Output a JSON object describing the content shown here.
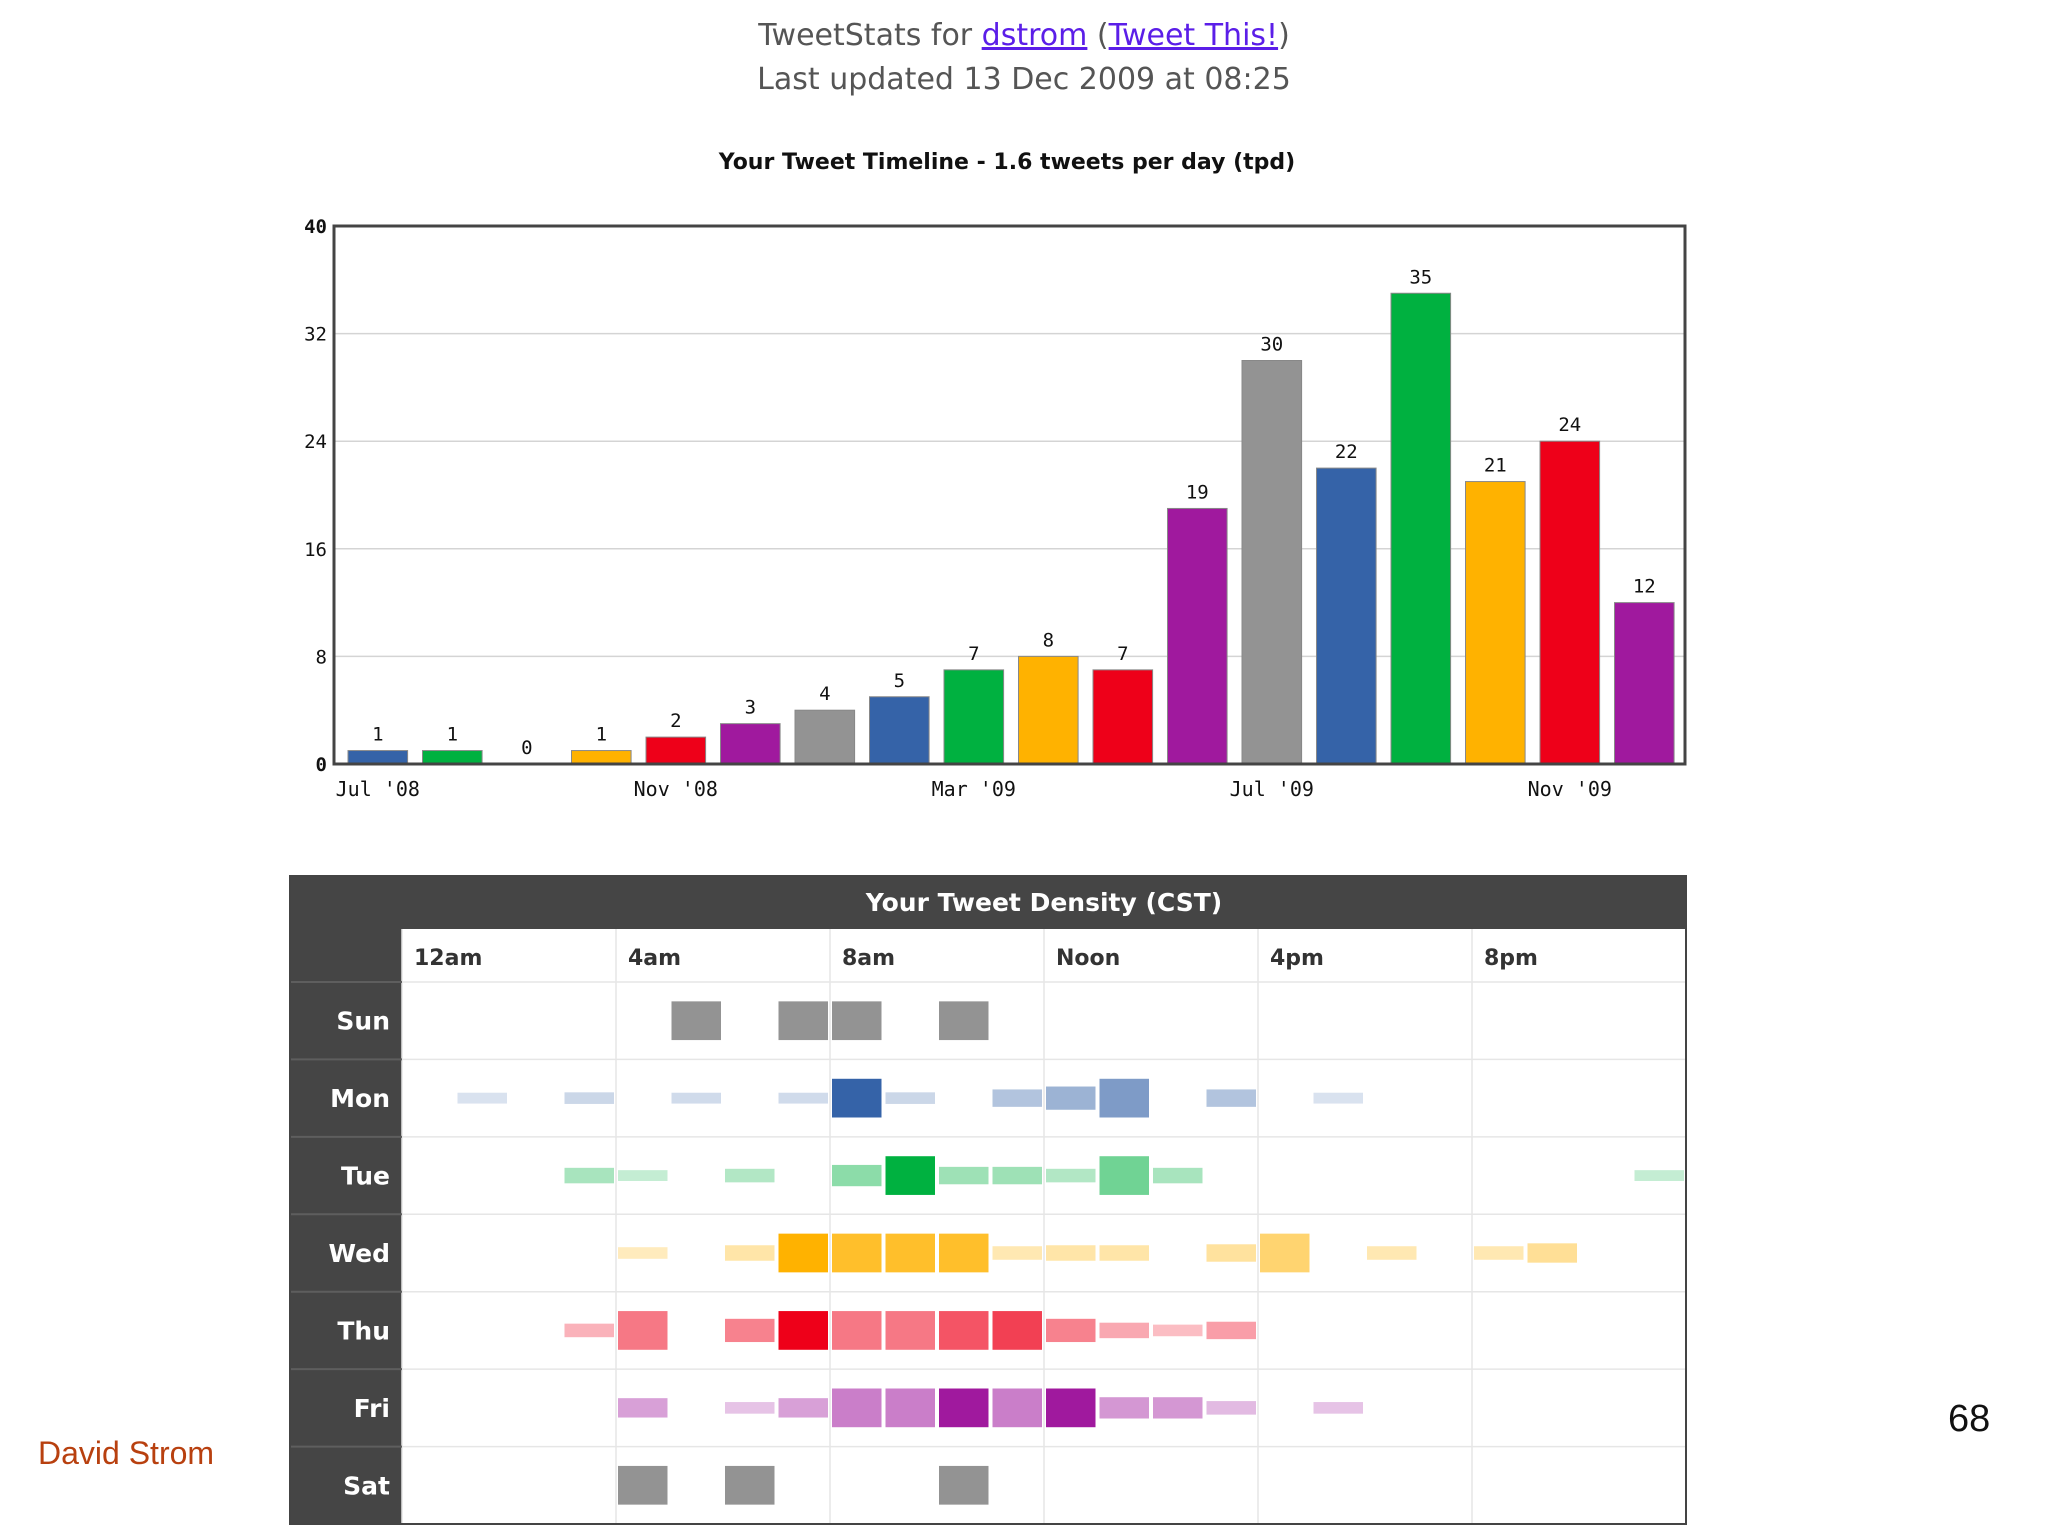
{
  "header": {
    "prefix": "TweetStats for ",
    "user_link": "dstrom",
    "paren_open": " (",
    "tweet_link": "Tweet This!",
    "paren_close": ")",
    "updated": "Last updated 13 Dec 2009 at 08:25"
  },
  "colors": {
    "blue": "#3563a8",
    "green": "#00b140",
    "orange": "#ffb200",
    "red": "#ee0019",
    "purple": "#a0199e",
    "gray": "#939393"
  },
  "chart_data": [
    {
      "type": "bar",
      "title": "Your Tweet Timeline - 1.6 tweets per day (tpd)",
      "xlabel": "",
      "ylabel": "",
      "ylim": [
        0,
        40
      ],
      "yticks": [
        "0",
        "8",
        "16",
        "24",
        "32",
        "40"
      ],
      "x_tick_labels": [
        {
          "label": "Jul '08",
          "index": 0
        },
        {
          "label": "Nov '08",
          "index": 4
        },
        {
          "label": "Mar '09",
          "index": 8
        },
        {
          "label": "Jul '09",
          "index": 12
        },
        {
          "label": "Nov '09",
          "index": 16
        }
      ],
      "values": [
        1,
        1,
        0,
        1,
        2,
        3,
        4,
        5,
        7,
        8,
        7,
        19,
        30,
        22,
        35,
        21,
        24,
        12
      ],
      "bar_colors": [
        "blue",
        "green",
        "orange",
        "orange",
        "red",
        "purple",
        "gray",
        "blue",
        "green",
        "orange",
        "red",
        "purple",
        "gray",
        "blue",
        "green",
        "orange",
        "red",
        "purple"
      ]
    },
    {
      "type": "heatmap",
      "title": "Your Tweet Density (CST)",
      "columns": [
        "12am",
        "4am",
        "8am",
        "Noon",
        "4pm",
        "8pm"
      ],
      "rows": [
        {
          "day": "Sun",
          "color": "gray",
          "hours": [
            0,
            0,
            0,
            0,
            0,
            1,
            0,
            1,
            1,
            0,
            1,
            0,
            0,
            0,
            0,
            0,
            0,
            0,
            0,
            0,
            0,
            0,
            0,
            0
          ]
        },
        {
          "day": "Mon",
          "color": "blue",
          "hours": [
            0,
            0.05,
            0,
            0.15,
            0,
            0.1,
            0,
            0.1,
            1,
            0.15,
            0,
            0.3,
            0.45,
            0.65,
            0,
            0.3,
            0,
            0.05,
            0,
            0,
            0,
            0,
            0,
            0
          ]
        },
        {
          "day": "Tue",
          "color": "green",
          "hours": [
            0,
            0,
            0,
            0.25,
            0.1,
            0,
            0.2,
            0,
            0.4,
            1,
            0.3,
            0.3,
            0.2,
            0.55,
            0.25,
            0,
            0,
            0,
            0,
            0,
            0,
            0,
            0,
            0.1
          ]
        },
        {
          "day": "Wed",
          "color": "orange",
          "hours": [
            0,
            0,
            0,
            0,
            0.15,
            0,
            0.25,
            1,
            0.9,
            0.9,
            0.9,
            0.2,
            0.25,
            0.25,
            0,
            0.3,
            0.55,
            0,
            0.2,
            0,
            0.2,
            0.35,
            0,
            0
          ]
        },
        {
          "day": "Thu",
          "color": "red",
          "hours": [
            0,
            0,
            0,
            0.2,
            0.5,
            0,
            0.45,
            1,
            0.5,
            0.5,
            0.7,
            0.8,
            0.45,
            0.25,
            0.15,
            0.3,
            0,
            0,
            0,
            0,
            0,
            0,
            0,
            0
          ]
        },
        {
          "day": "Fri",
          "color": "purple",
          "hours": [
            0,
            0,
            0,
            0,
            0.35,
            0,
            0.15,
            0.35,
            0.55,
            0.55,
            1,
            0.55,
            1,
            0.4,
            0.4,
            0.2,
            0,
            0.15,
            0,
            0,
            0,
            0,
            0,
            0
          ]
        },
        {
          "day": "Sat",
          "color": "gray",
          "hours": [
            0,
            0,
            0,
            0,
            1,
            0,
            1,
            0,
            0,
            0,
            1,
            0,
            0,
            0,
            0,
            0,
            0,
            0,
            0,
            0,
            0,
            0,
            0,
            0
          ]
        }
      ]
    }
  ],
  "footer": {
    "author": "David Strom",
    "page_number": "68"
  }
}
